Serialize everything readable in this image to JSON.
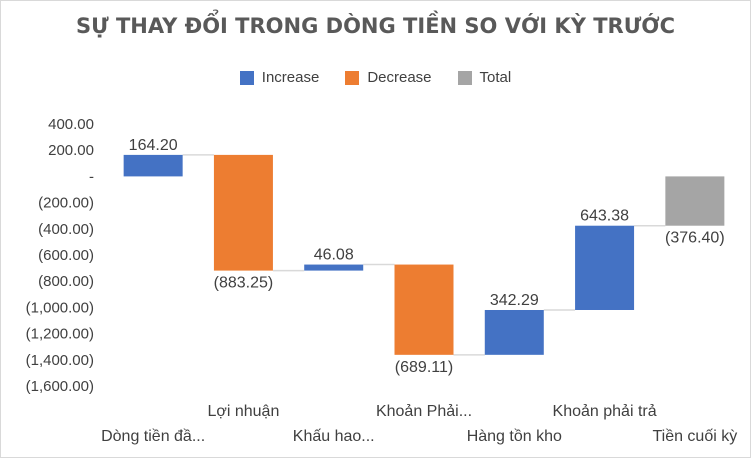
{
  "chart_data": {
    "type": "waterfall",
    "title": "SỰ THAY ĐỔI TRONG DÒNG TIỀN SO VỚI KỲ TRƯỚC",
    "legend": [
      {
        "name": "Increase",
        "color": "#4472c4"
      },
      {
        "name": "Decrease",
        "color": "#ed7d31"
      },
      {
        "name": "Total",
        "color": "#a5a5a5"
      }
    ],
    "legend_position": "top",
    "categories": [
      "Dòng tiền đầ...",
      "Lợi nhuận",
      "Khấu hao...",
      "Khoản Phải...",
      "Hàng tồn kho",
      "Khoản phải trả",
      "Tiền cuối kỳ"
    ],
    "values": [
      164.2,
      -883.25,
      46.08,
      -689.11,
      342.29,
      643.38,
      -376.4
    ],
    "kinds": [
      "increase",
      "decrease",
      "increase",
      "decrease",
      "increase",
      "increase",
      "total"
    ],
    "data_labels": [
      "164.20",
      "(883.25)",
      "46.08",
      "(689.11)",
      "342.29",
      "643.38",
      "(376.40)"
    ],
    "ylim": [
      -1600,
      400
    ],
    "y_ticks": [
      400,
      200,
      0,
      -200,
      -400,
      -600,
      -800,
      -1000,
      -1200,
      -1400,
      -1600
    ],
    "y_tick_labels": [
      "400.00",
      "200.00",
      "-",
      "(200.00)",
      "(400.00)",
      "(600.00)",
      "(800.00)",
      "(1,000.00)",
      "(1,200.00)",
      "(1,400.00)",
      "(1,600.00)"
    ],
    "grid": false,
    "xlabel": "",
    "ylabel": ""
  }
}
